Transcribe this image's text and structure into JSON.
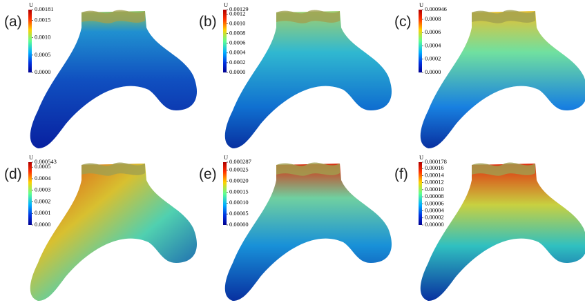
{
  "panels": [
    {
      "label": "(a)",
      "colorbar_title": "U",
      "ticks": [
        "0.00181",
        "0.0015",
        "0.0010",
        "0.0005",
        "0.0000"
      ]
    },
    {
      "label": "(b)",
      "colorbar_title": "U",
      "ticks": [
        "0.00129",
        "0.0012",
        "0.0010",
        "0.0008",
        "0.0006",
        "0.0004",
        "0.0002",
        "0.0000"
      ]
    },
    {
      "label": "(c)",
      "colorbar_title": "U",
      "ticks": [
        "0.000946",
        "0.0008",
        "0.0006",
        "0.0004",
        "0.0002",
        "0.0000"
      ]
    },
    {
      "label": "(d)",
      "colorbar_title": "U",
      "ticks": [
        "0.000543",
        "0.0005",
        "0.0004",
        "0.0003",
        "0.0002",
        "0.0001",
        "0.0000"
      ]
    },
    {
      "label": "(e)",
      "colorbar_title": "U",
      "ticks": [
        "0.000287",
        "0.00025",
        "0.00020",
        "0.00015",
        "0.00010",
        "0.00005",
        "0.00000"
      ]
    },
    {
      "label": "(f)",
      "colorbar_title": "U",
      "ticks": [
        "0.000178",
        "0.00016",
        "0.00014",
        "0.00012",
        "0.00010",
        "0.00008",
        "0.00006",
        "0.00004",
        "0.00002",
        "0.00000"
      ]
    }
  ]
}
